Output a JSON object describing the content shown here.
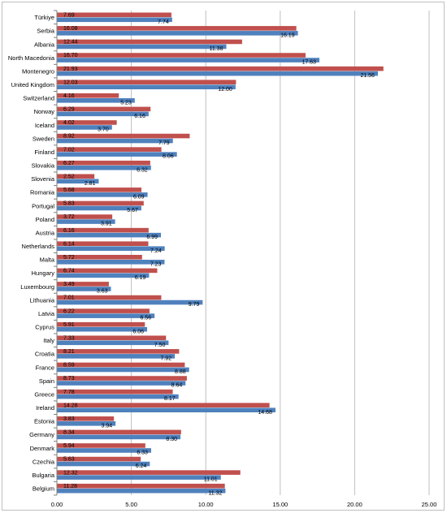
{
  "chart_data": {
    "type": "bar",
    "orientation": "horizontal",
    "categories": [
      "Türkiye",
      "Serbia",
      "Albania",
      "North Macedonia",
      "Montenegro",
      "United Kingdom",
      "Switzerland",
      "Norway",
      "Iceland",
      "Sweden",
      "Finland",
      "Slovakia",
      "Slovenia",
      "Romania",
      "Portugal",
      "Poland",
      "Austria",
      "Netherlands",
      "Malta",
      "Hungary",
      "Luxembourg",
      "Lithuania",
      "Latvia",
      "Cyprus",
      "Italy",
      "Croatia",
      "France",
      "Spain",
      "Greece",
      "Ireland",
      "Estonia",
      "Germany",
      "Denmark",
      "Czechia",
      "Bulgaria",
      "Belgium"
    ],
    "series": [
      {
        "color": "#c0504d",
        "values": [
          7.69,
          16.08,
          12.44,
          16.7,
          21.93,
          12.03,
          4.16,
          6.29,
          4.02,
          8.92,
          7.02,
          6.27,
          2.52,
          5.68,
          5.83,
          3.72,
          6.16,
          6.14,
          5.72,
          6.74,
          3.49,
          7.01,
          6.22,
          5.91,
          7.33,
          8.21,
          8.59,
          8.73,
          7.78,
          14.28,
          3.83,
          8.34,
          5.94,
          5.63,
          12.32,
          11.28
        ]
      },
      {
        "color": "#4f81bd",
        "values": [
          7.74,
          16.19,
          11.38,
          17.63,
          21.56,
          12.0,
          5.23,
          6.16,
          3.7,
          7.79,
          8.06,
          6.32,
          2.81,
          6.09,
          5.67,
          3.91,
          6.99,
          7.24,
          7.23,
          6.19,
          3.63,
          9.79,
          6.56,
          6.06,
          7.5,
          7.92,
          8.88,
          8.64,
          8.17,
          14.68,
          3.94,
          8.3,
          6.33,
          6.24,
          11.01,
          11.32
        ]
      }
    ],
    "value_labels": {
      "s0": [
        "7.69",
        "16.08",
        "12.44",
        "16.70",
        "21.93",
        "12.03",
        "4.16",
        "6.29",
        "4.02",
        "8.92",
        "7.02",
        "6.27",
        "2.52",
        "5.68",
        "5.83",
        "3.72",
        "6.16",
        "6.14",
        "5.72",
        "6.74",
        "3.49",
        "7.01",
        "6.22",
        "5.91",
        "7.33",
        "8.21",
        "8.59",
        "8.73",
        "7.78",
        "14.28",
        "3.83",
        "8.34",
        "5.94",
        "5.63",
        "12.32",
        "11.28"
      ],
      "s1": [
        "7.74",
        "16.19",
        "11.38",
        "17.63",
        "21.56",
        "12.00",
        "5.23",
        "6.16",
        "3.70",
        "7.79",
        "8.06",
        "6.32",
        "2.81",
        "6.09",
        "5.67",
        "3.91",
        "6.99",
        "7.24",
        "7.23",
        "6.19",
        "3.63",
        "9.79",
        "6.56",
        "6.06",
        "7.50",
        "7.92",
        "8.88",
        "8.64",
        "8.17",
        "14.68",
        "3.94",
        "8.30",
        "6.33",
        "6.24",
        "11.01",
        "11.32"
      ]
    },
    "x_ticks": [
      "0.00",
      "5.00",
      "10.00",
      "15.00",
      "20.00",
      "25.00"
    ],
    "xlim": [
      0,
      25
    ],
    "grid": "vertical",
    "legend": "none",
    "title": "",
    "xlabel": "",
    "ylabel": ""
  }
}
